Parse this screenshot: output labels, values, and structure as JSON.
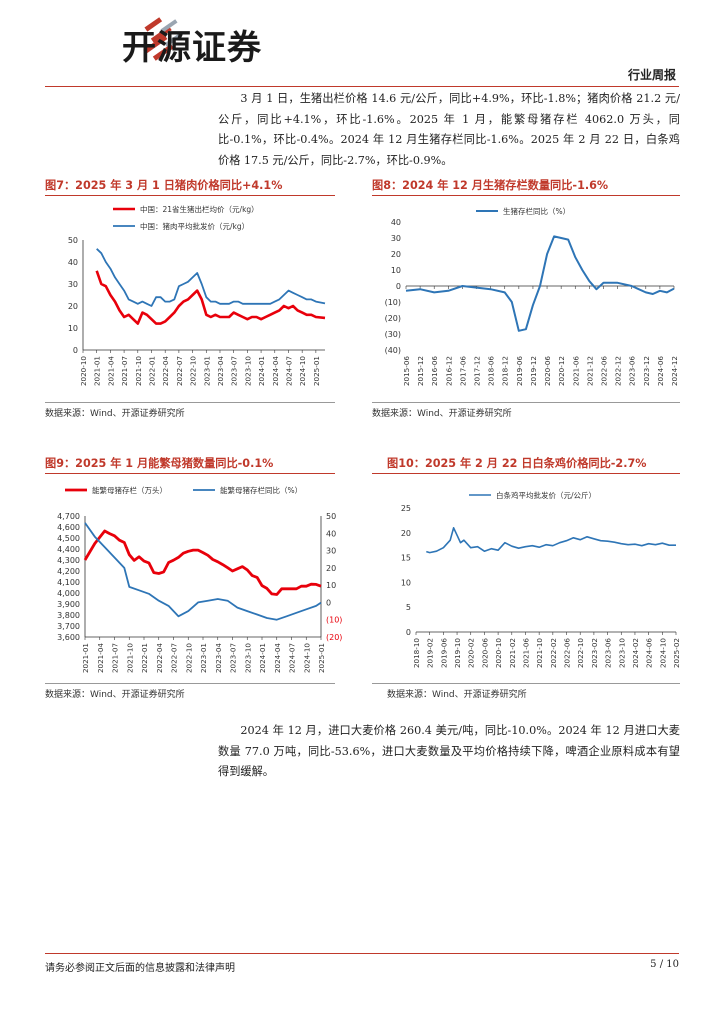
{
  "header": {
    "company": "开源证券",
    "tag": "行业周报"
  },
  "paragraphs": [
    "3 月 1 日，生猪出栏价格 14.6 元/公斤，同比+4.9%，环比-1.8%；猪肉价格 21.2 元/公斤，同比+4.1%，环比-1.6%。2025 年 1 月，能繁母猪存栏 4062.0 万头，同比-0.1%，环比-0.4%。2024 年 12 月生猪存栏同比-1.6%。2025 年 2 月 22 日，白条鸡价格 17.5 元/公斤，同比-2.7%，环比-0.9%。",
    "2024 年 12 月，进口大麦价格 260.4 美元/吨，同比-10.0%。2024 年 12 月进口大麦数量 77.0 万吨，同比-53.6%，进口大麦数量及平均价格持续下降，啤酒企业原料成本有望得到缓解。"
  ],
  "figures": [
    {
      "title": "图7：2025 年 3 月 1 日猪肉价格同比+4.1%",
      "source": "数据来源：Wind、开源证券研究所"
    },
    {
      "title": "图8：2024 年 12 月生猪存栏数量同比-1.6%",
      "source": "数据来源：Wind、开源证券研究所"
    },
    {
      "title": "图9：2025 年 1 月能繁母猪数量同比-0.1%",
      "source": "数据来源：Wind、开源证券研究所"
    },
    {
      "title": "图10：2025 年 2 月 22 日白条鸡价格同比-2.7%",
      "source": "数据来源：Wind、开源证券研究所"
    }
  ],
  "footer": {
    "disclaimer": "请务必参阅正文后面的信息披露和法律声明",
    "page": "5 / 10"
  },
  "colors": {
    "accent": "#c0392b",
    "red_series": "#e8000b",
    "blue_series": "#2e75b6"
  },
  "chart_data": [
    {
      "type": "line",
      "ylim": [
        0,
        50
      ],
      "yticks": [
        0,
        10,
        20,
        30,
        40,
        50
      ],
      "x_range": [
        "2020-10",
        "2025-03"
      ],
      "xticks": [
        "2020-10",
        "2021-01",
        "2021-04",
        "2021-07",
        "2021-10",
        "2022-01",
        "2022-04",
        "2022-07",
        "2022-10",
        "2023-01",
        "2023-04",
        "2023-07",
        "2023-10",
        "2024-01",
        "2024-04",
        "2024-07",
        "2024-10",
        "2025-01"
      ],
      "series": [
        {
          "name": "中国：21省生猪出栏均价（元/kg）",
          "color": "#e8000b",
          "x": [
            "2021-01",
            "2021-02",
            "2021-03",
            "2021-04",
            "2021-05",
            "2021-06",
            "2021-07",
            "2021-08",
            "2021-09",
            "2021-10",
            "2021-11",
            "2021-12",
            "2022-01",
            "2022-02",
            "2022-03",
            "2022-04",
            "2022-05",
            "2022-06",
            "2022-07",
            "2022-08",
            "2022-09",
            "2022-10",
            "2022-11",
            "2022-12",
            "2023-01",
            "2023-02",
            "2023-03",
            "2023-04",
            "2023-05",
            "2023-06",
            "2023-07",
            "2023-08",
            "2023-09",
            "2023-10",
            "2023-11",
            "2023-12",
            "2024-01",
            "2024-02",
            "2024-03",
            "2024-04",
            "2024-05",
            "2024-06",
            "2024-07",
            "2024-08",
            "2024-09",
            "2024-10",
            "2024-11",
            "2024-12",
            "2025-01",
            "2025-03"
          ],
          "y": [
            36,
            30,
            29,
            25,
            22,
            18,
            15,
            16,
            14,
            12,
            17,
            16,
            14,
            12,
            12,
            13,
            15,
            17,
            20,
            22,
            23,
            25,
            27,
            23,
            16,
            15,
            16,
            15,
            15,
            15,
            17,
            16,
            15,
            14,
            15,
            15,
            14,
            15,
            16,
            17,
            18,
            20,
            19,
            20,
            18,
            17,
            16,
            16,
            15,
            14.6
          ]
        },
        {
          "name": "中国：猪肉平均批发价（元/kg）",
          "color": "#2e75b6",
          "x": [
            "2021-01",
            "2021-02",
            "2021-03",
            "2021-04",
            "2021-05",
            "2021-06",
            "2021-07",
            "2021-08",
            "2021-09",
            "2021-10",
            "2021-11",
            "2021-12",
            "2022-01",
            "2022-02",
            "2022-03",
            "2022-04",
            "2022-05",
            "2022-06",
            "2022-07",
            "2022-08",
            "2022-09",
            "2022-10",
            "2022-11",
            "2022-12",
            "2023-01",
            "2023-02",
            "2023-03",
            "2023-04",
            "2023-05",
            "2023-06",
            "2023-07",
            "2023-08",
            "2023-09",
            "2023-10",
            "2023-11",
            "2023-12",
            "2024-01",
            "2024-02",
            "2024-03",
            "2024-04",
            "2024-05",
            "2024-06",
            "2024-07",
            "2024-08",
            "2024-09",
            "2024-10",
            "2024-11",
            "2024-12",
            "2025-01",
            "2025-03"
          ],
          "y": [
            46,
            44,
            40,
            37,
            33,
            30,
            27,
            23,
            22,
            21,
            22,
            21,
            20,
            24,
            24,
            22,
            22,
            23,
            29,
            30,
            31,
            33,
            35,
            30,
            24,
            22,
            22,
            21,
            21,
            21,
            22,
            22,
            21,
            21,
            21,
            21,
            21,
            21,
            21,
            22,
            23,
            25,
            27,
            26,
            25,
            24,
            23,
            23,
            22,
            21.2
          ]
        }
      ]
    },
    {
      "type": "line",
      "ylim": [
        -40,
        40
      ],
      "yticks": [
        "40",
        "30",
        "20",
        "10",
        "0",
        "(10)",
        "(20)",
        "(30)",
        "(40)"
      ],
      "x_range": [
        "2015-06",
        "2024-12"
      ],
      "xticks": [
        "2015-06",
        "2015-12",
        "2016-06",
        "2016-12",
        "2017-06",
        "2017-12",
        "2018-06",
        "2018-12",
        "2019-06",
        "2019-12",
        "2020-06",
        "2020-12",
        "2021-06",
        "2021-12",
        "2022-06",
        "2022-12",
        "2023-06",
        "2023-12",
        "2024-06",
        "2024-12"
      ],
      "series": [
        {
          "name": "生猪存栏同比（%）",
          "color": "#2e75b6",
          "x": [
            "2015-06",
            "2015-12",
            "2016-06",
            "2016-12",
            "2017-06",
            "2017-12",
            "2018-06",
            "2018-12",
            "2019-03",
            "2019-06",
            "2019-09",
            "2019-12",
            "2020-03",
            "2020-06",
            "2020-09",
            "2020-12",
            "2021-03",
            "2021-06",
            "2021-09",
            "2021-12",
            "2022-03",
            "2022-06",
            "2022-12",
            "2023-06",
            "2023-12",
            "2024-03",
            "2024-06",
            "2024-09",
            "2024-12"
          ],
          "y": [
            -3,
            -2,
            -4,
            -3,
            0,
            -1,
            -2,
            -4,
            -10,
            -28,
            -27,
            -12,
            0,
            20,
            31,
            30,
            29,
            18,
            10,
            3,
            -2,
            2,
            2,
            0,
            -4,
            -5,
            -3,
            -4,
            -1.6
          ]
        }
      ]
    },
    {
      "type": "line",
      "left_ylim": [
        3600,
        4700
      ],
      "left_yticks": [
        "3,600",
        "3,700",
        "3,800",
        "3,900",
        "4,000",
        "4,100",
        "4,200",
        "4,300",
        "4,400",
        "4,500",
        "4,600",
        "4,700"
      ],
      "right_ylim": [
        -20,
        50
      ],
      "right_yticks": [
        "(20)",
        "(10)",
        "0",
        "10",
        "20",
        "30",
        "40",
        "50"
      ],
      "x_range": [
        "2021-01",
        "2025-01"
      ],
      "xticks": [
        "2021-01",
        "2021-04",
        "2021-07",
        "2021-10",
        "2022-01",
        "2022-04",
        "2022-07",
        "2022-10",
        "2023-01",
        "2023-04",
        "2023-07",
        "2023-10",
        "2024-01",
        "2024-04",
        "2024-07",
        "2024-10",
        "2025-01"
      ],
      "series": [
        {
          "name": "能繁母猪存栏（万头）",
          "color": "#e8000b",
          "axis": "left",
          "x": [
            "2021-01",
            "2021-03",
            "2021-05",
            "2021-06",
            "2021-07",
            "2021-08",
            "2021-09",
            "2021-10",
            "2021-11",
            "2021-12",
            "2022-01",
            "2022-02",
            "2022-03",
            "2022-04",
            "2022-05",
            "2022-06",
            "2022-07",
            "2022-08",
            "2022-09",
            "2022-10",
            "2022-11",
            "2022-12",
            "2023-01",
            "2023-02",
            "2023-03",
            "2023-04",
            "2023-05",
            "2023-06",
            "2023-07",
            "2023-08",
            "2023-09",
            "2023-10",
            "2023-11",
            "2023-12",
            "2024-01",
            "2024-02",
            "2024-03",
            "2024-04",
            "2024-05",
            "2024-06",
            "2024-07",
            "2024-08",
            "2024-09",
            "2024-10",
            "2024-11",
            "2024-12",
            "2025-01"
          ],
          "y": [
            4300,
            4450,
            4564,
            4540,
            4520,
            4480,
            4459,
            4348,
            4296,
            4329,
            4290,
            4274,
            4185,
            4177,
            4192,
            4277,
            4298,
            4324,
            4362,
            4379,
            4390,
            4390,
            4367,
            4343,
            4305,
            4284,
            4258,
            4230,
            4200,
            4220,
            4240,
            4210,
            4158,
            4142,
            4067,
            4042,
            3992,
            3986,
            4038,
            4038,
            4038,
            4038,
            4062,
            4062,
            4080,
            4078,
            4062
          ]
        },
        {
          "name": "能繁母猪存栏同比（%）",
          "color": "#2e75b6",
          "axis": "right",
          "x": [
            "2021-01",
            "2021-03",
            "2021-05",
            "2021-07",
            "2021-09",
            "2021-10",
            "2021-12",
            "2022-02",
            "2022-04",
            "2022-06",
            "2022-08",
            "2022-10",
            "2022-12",
            "2023-02",
            "2023-04",
            "2023-06",
            "2023-08",
            "2023-10",
            "2023-12",
            "2024-02",
            "2024-04",
            "2024-06",
            "2024-08",
            "2024-10",
            "2024-12",
            "2025-01"
          ],
          "y": [
            46,
            38,
            32,
            26,
            20,
            9,
            7,
            5,
            1,
            -2,
            -8,
            -5,
            0,
            1,
            2,
            1,
            -3,
            -5,
            -7,
            -9,
            -10,
            -8,
            -6,
            -4,
            -2,
            -0.1
          ]
        }
      ]
    },
    {
      "type": "line",
      "ylim": [
        0,
        25
      ],
      "yticks": [
        0,
        5,
        10,
        15,
        20,
        25
      ],
      "x_range": [
        "2018-10",
        "2025-02"
      ],
      "xticks": [
        "2018-10",
        "2019-02",
        "2019-06",
        "2019-10",
        "2020-02",
        "2020-06",
        "2020-10",
        "2021-02",
        "2021-06",
        "2021-10",
        "2022-02",
        "2022-06",
        "2022-10",
        "2023-02",
        "2023-06",
        "2023-10",
        "2024-02",
        "2024-06",
        "2024-10",
        "2025-02"
      ],
      "series": [
        {
          "name": "白条鸡平均批发价（元/公斤）",
          "color": "#2e75b6",
          "x": [
            "2019-01",
            "2019-02",
            "2019-04",
            "2019-06",
            "2019-08",
            "2019-09",
            "2019-10",
            "2019-11",
            "2019-12",
            "2020-02",
            "2020-04",
            "2020-06",
            "2020-08",
            "2020-10",
            "2020-12",
            "2021-02",
            "2021-04",
            "2021-06",
            "2021-08",
            "2021-10",
            "2021-12",
            "2022-02",
            "2022-04",
            "2022-06",
            "2022-08",
            "2022-10",
            "2022-12",
            "2023-02",
            "2023-04",
            "2023-06",
            "2023-08",
            "2023-10",
            "2023-12",
            "2024-02",
            "2024-04",
            "2024-06",
            "2024-08",
            "2024-10",
            "2024-12",
            "2025-02"
          ],
          "y": [
            16.2,
            16,
            16.3,
            17,
            18.5,
            21,
            19.5,
            18,
            18.5,
            17,
            17.2,
            16.3,
            16.8,
            16.5,
            18,
            17.3,
            16.9,
            17.2,
            17.4,
            17.1,
            17.6,
            17.4,
            18,
            18.4,
            19,
            18.6,
            19.2,
            18.8,
            18.4,
            18.3,
            18.1,
            17.8,
            17.6,
            17.7,
            17.4,
            17.8,
            17.6,
            17.9,
            17.5,
            17.5
          ]
        }
      ]
    }
  ]
}
